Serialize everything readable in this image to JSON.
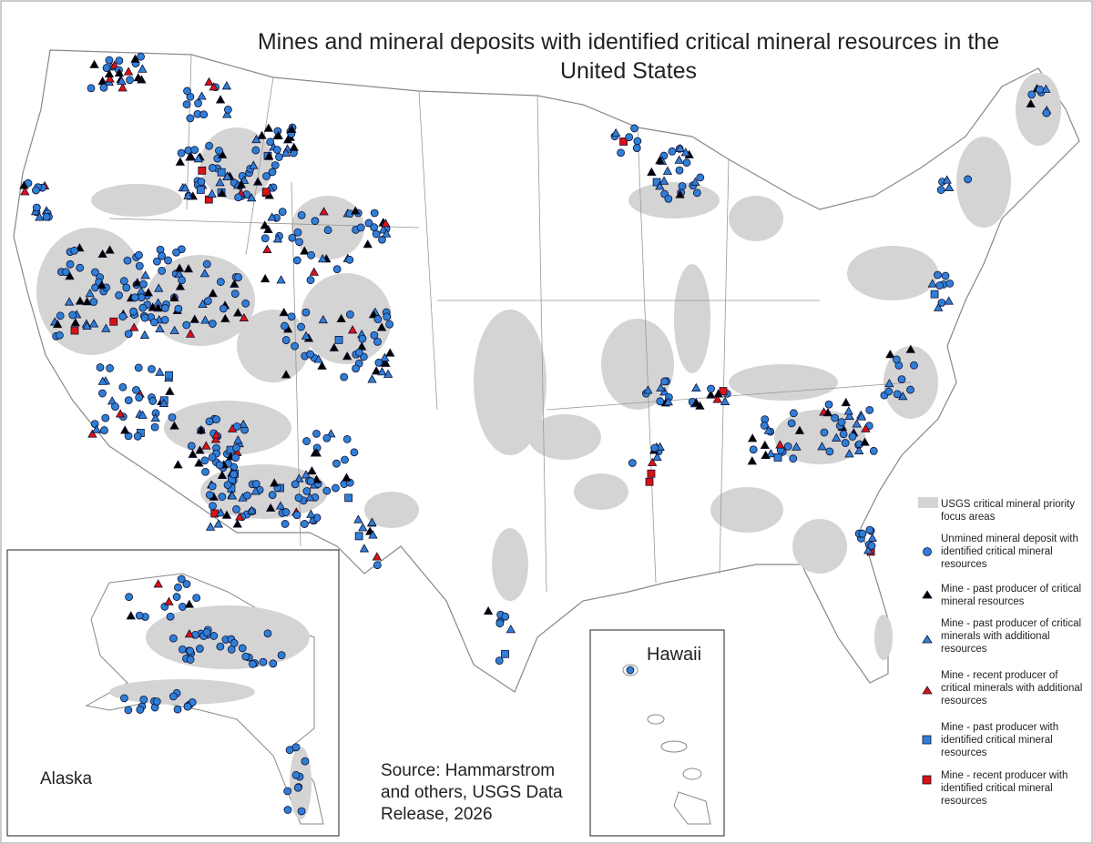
{
  "title": "Mines and mineral deposits with identified critical mineral resources in the United States",
  "legend": [
    {
      "label": "USGS critical mineral priority focus areas"
    },
    {
      "label": "Unmined mineral deposit with identified critical mineral resources"
    },
    {
      "label": "Mine - past producer of critical mineral resources"
    },
    {
      "label": "Mine - past producer of critical minerals with additional resources"
    },
    {
      "label": "Mine - recent producer of critical minerals with additional resources"
    },
    {
      "label": "Mine - past producer with identified critical mineral resources"
    },
    {
      "label": "Mine - recent producer with identified critical mineral resources"
    }
  ],
  "insets": {
    "alaska": "Alaska",
    "hawaii": "Hawaii"
  },
  "source": "Source: Hammarstrom and others, USGS Data Release, 2026"
}
